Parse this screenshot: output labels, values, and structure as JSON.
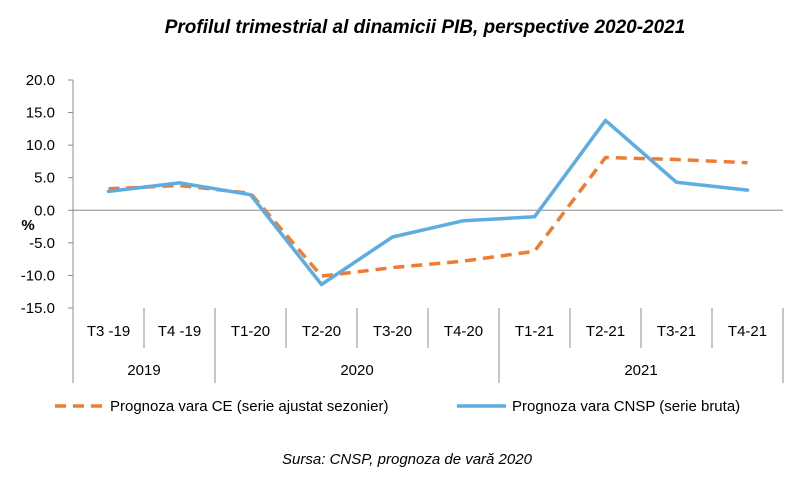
{
  "chart_data": {
    "type": "line",
    "title": "Profilul trimestrial al dinamicii PIB, perspective 2020-2021",
    "ylabel": "%",
    "xlabel": "",
    "ylim": [
      -15.0,
      20.0
    ],
    "y_ticks": [
      "20.0",
      "15.0",
      "10.0",
      "5.0",
      "0.0",
      "-5.0",
      "-10.0",
      "-15.0"
    ],
    "categories": [
      "T3 -19",
      "T4 -19",
      "T1-20",
      "T2-20",
      "T3-20",
      "T4-20",
      "T1-21",
      "T2-21",
      "T3-21",
      "T4-21"
    ],
    "year_groups": [
      {
        "label": "2019",
        "span": 2
      },
      {
        "label": "2020",
        "span": 4
      },
      {
        "label": "2021",
        "span": 4
      }
    ],
    "series": [
      {
        "name": "Prognoza vara CE (serie ajustat sezonier)",
        "color": "#ED7D31",
        "style": "dashed",
        "values": [
          3.3,
          3.8,
          2.6,
          -10.1,
          -8.8,
          -7.8,
          -6.3,
          8.1,
          7.8,
          7.3
        ]
      },
      {
        "name": "Prognoza vara CNSP (serie bruta)",
        "color": "#5DADE2",
        "style": "solid",
        "values": [
          2.9,
          4.2,
          2.4,
          -11.4,
          -4.1,
          -1.6,
          -1.0,
          13.8,
          4.3,
          3.1
        ]
      }
    ],
    "grid": false,
    "legend_position": "bottom"
  },
  "source_note": "Sursa: CNSP, prognoza de vară 2020"
}
